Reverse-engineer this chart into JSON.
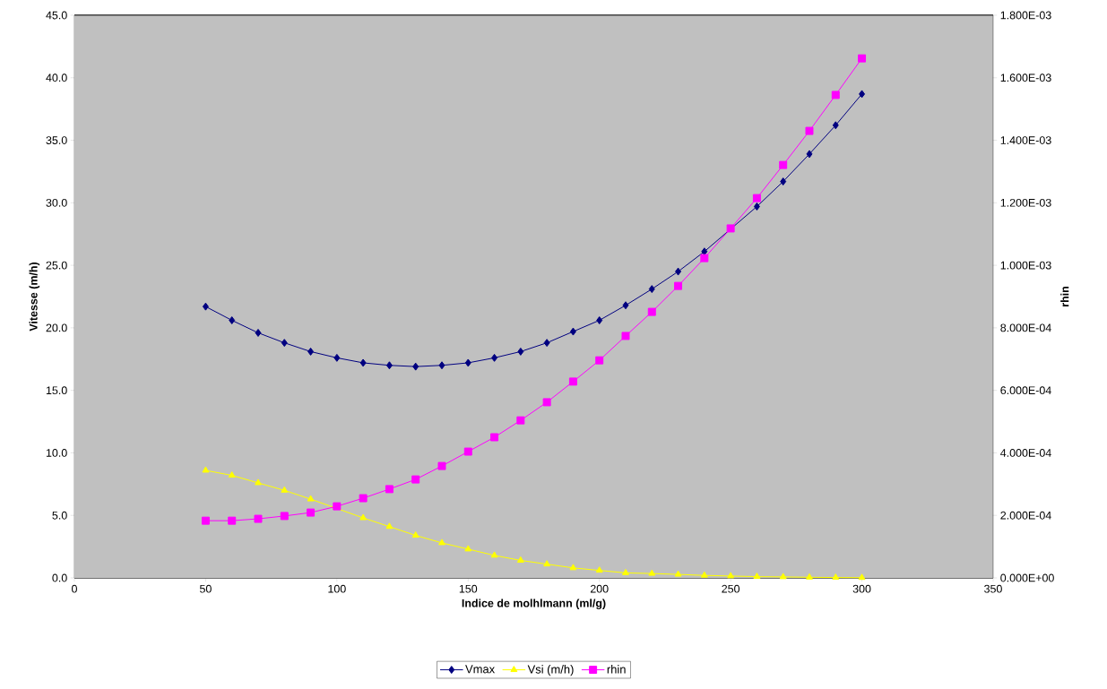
{
  "chart_data": {
    "type": "line",
    "xlabel": "Indice de molhlmann (ml/g)",
    "ylabel": "Vitesse (m/h)",
    "y2label": "rhin",
    "x": [
      50,
      60,
      70,
      80,
      90,
      100,
      110,
      120,
      130,
      140,
      150,
      160,
      170,
      180,
      190,
      200,
      210,
      220,
      230,
      240,
      250,
      260,
      270,
      280,
      290,
      300
    ],
    "series": [
      {
        "name": "Vmax",
        "color": "#000080",
        "marker": "diamond",
        "values": [
          21.7,
          20.6,
          19.6,
          18.8,
          18.1,
          17.6,
          17.2,
          17.0,
          16.9,
          17.0,
          17.2,
          17.6,
          18.1,
          18.8,
          19.7,
          20.6,
          21.8,
          23.1,
          24.5,
          26.1,
          null,
          29.7,
          31.7,
          33.9,
          36.2,
          38.7
        ]
      },
      {
        "name": "Vsi (m/h)",
        "color": "#ffff00",
        "marker": "triangle",
        "values": [
          8.6,
          8.2,
          7.6,
          7.0,
          6.3,
          null,
          4.8,
          4.1,
          3.4,
          2.8,
          2.3,
          1.8,
          1.4,
          1.1,
          0.8,
          0.6,
          0.4,
          0.35,
          0.28,
          0.2,
          0.15,
          0.1,
          0.08,
          0.05,
          0.03,
          0.02
        ]
      },
      {
        "name": "rhin",
        "color": "#ff00ff",
        "marker": "square",
        "axis": "y2",
        "values": [
          0.000183,
          0.000183,
          0.000189,
          0.000198,
          0.000209,
          0.000229,
          0.000255,
          0.000284,
          0.000315,
          0.000358,
          0.000404,
          0.00045,
          0.000504,
          0.000562,
          0.000628,
          0.000696,
          0.000774,
          0.000851,
          0.000934,
          0.001023,
          0.001118,
          0.001215,
          0.001321,
          0.00143,
          0.001545,
          0.001662
        ]
      }
    ],
    "xlim": [
      0,
      350
    ],
    "xticks": [
      0,
      50,
      100,
      150,
      200,
      250,
      300,
      350
    ],
    "ylim": [
      0,
      45
    ],
    "yticks": [
      {
        "value": 0,
        "label": "0.0"
      },
      {
        "value": 5,
        "label": "5.0"
      },
      {
        "value": 10,
        "label": "10.0"
      },
      {
        "value": 15,
        "label": "15.0"
      },
      {
        "value": 20,
        "label": "20.0"
      },
      {
        "value": 25,
        "label": "25.0"
      },
      {
        "value": 30,
        "label": "30.0"
      },
      {
        "value": 35,
        "label": "35.0"
      },
      {
        "value": 40,
        "label": "40.0"
      },
      {
        "value": 45,
        "label": "45.0"
      }
    ],
    "y2lim": [
      0,
      0.0018
    ],
    "y2ticks": [
      {
        "value": 0,
        "label": "0.000E+00"
      },
      {
        "value": 0.0002,
        "label": "2.000E-04"
      },
      {
        "value": 0.0004,
        "label": "4.000E-04"
      },
      {
        "value": 0.0006,
        "label": "6.000E-04"
      },
      {
        "value": 0.0008,
        "label": "8.000E-04"
      },
      {
        "value": 0.001,
        "label": "1.000E-03"
      },
      {
        "value": 0.0012,
        "label": "1.200E-03"
      },
      {
        "value": 0.0014,
        "label": "1.400E-03"
      },
      {
        "value": 0.0016,
        "label": "1.600E-03"
      },
      {
        "value": 0.0018,
        "label": "1.800E-03"
      }
    ],
    "grid": "y",
    "legend": "bottom"
  }
}
